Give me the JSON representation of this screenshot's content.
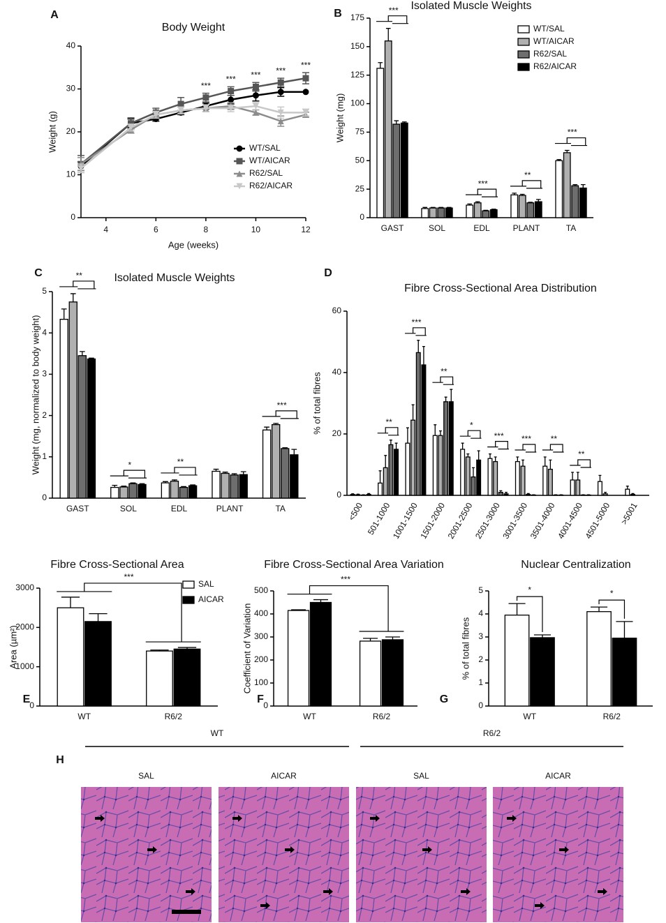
{
  "chart_data": [
    {
      "panel": "A",
      "type": "line",
      "title": "Body Weight",
      "x_label": "Age (weeks)",
      "y_label": "Weight (g)",
      "x": [
        3,
        5,
        6,
        7,
        8,
        9,
        10,
        11,
        12
      ],
      "xlim": [
        3,
        12
      ],
      "xticks": [
        4,
        6,
        8,
        10,
        12
      ],
      "ylim": [
        0,
        40
      ],
      "yticks": [
        0,
        10,
        20,
        30,
        40
      ],
      "significance": [
        null,
        null,
        null,
        null,
        "***",
        "***",
        "***",
        "***",
        "***"
      ],
      "series": [
        {
          "name": "WT/SAL",
          "color": "#000000",
          "marker": "circle",
          "values": [
            12,
            22,
            23,
            24.5,
            26,
            27.5,
            28.5,
            29.3,
            29.3
          ],
          "errors": [
            1,
            1,
            0.5,
            0.5,
            0.7,
            1,
            1.3,
            1,
            0
          ]
        },
        {
          "name": "WT/AICAR",
          "color": "#555555",
          "marker": "square",
          "values": [
            12.5,
            22,
            24.5,
            26.5,
            28,
            29.5,
            30.5,
            31.5,
            32.5
          ],
          "errors": [
            2,
            1.3,
            1,
            1.5,
            1,
            1,
            1,
            1,
            1.3
          ]
        },
        {
          "name": "R62/SAL",
          "color": "#8c8c8c",
          "marker": "triangle",
          "values": [
            12.5,
            20.5,
            24,
            25,
            25.5,
            26,
            24.5,
            22.5,
            24
          ],
          "errors": [
            1.5,
            0.8,
            0.8,
            0.8,
            0.8,
            0.8,
            0.6,
            1.2,
            0.6
          ]
        },
        {
          "name": "R62/AICAR",
          "color": "#c8c8c8",
          "marker": "triangle-down",
          "values": [
            11.5,
            21,
            24,
            25,
            25.5,
            25.5,
            26,
            24.5,
            24.5
          ],
          "errors": [
            1,
            0.8,
            0.8,
            0.8,
            0.8,
            0.8,
            0.8,
            1.3,
            0.8
          ]
        }
      ]
    },
    {
      "panel": "B",
      "type": "bar",
      "title": "Isolated Muscle Weights",
      "y_label": "Weight (mg)",
      "categories": [
        "GAST",
        "SOL",
        "EDL",
        "PLANT",
        "TA"
      ],
      "ylim": [
        0,
        175
      ],
      "yticks": [
        0,
        25,
        50,
        75,
        100,
        125,
        150,
        175
      ],
      "legend": true,
      "significance": [
        "***",
        null,
        "***",
        "**",
        "***"
      ],
      "series": [
        {
          "name": "WT/SAL",
          "color": "#ffffff",
          "values": [
            131,
            8,
            11,
            20,
            50
          ],
          "errors": [
            5,
            1,
            1,
            1.5,
            1
          ]
        },
        {
          "name": "WT/AICAR",
          "color": "#b0b0b0",
          "values": [
            155,
            8.5,
            13,
            19.5,
            57
          ],
          "errors": [
            11,
            0.5,
            1,
            1,
            2
          ]
        },
        {
          "name": "R62/SAL",
          "color": "#6e6e6e",
          "values": [
            82,
            8.5,
            6,
            13,
            28
          ],
          "errors": [
            3,
            0.5,
            0.5,
            0.5,
            1
          ]
        },
        {
          "name": "R62/AICAR",
          "color": "#000000",
          "values": [
            83,
            8.5,
            7,
            14,
            26
          ],
          "errors": [
            1,
            0.5,
            0.5,
            2,
            3
          ]
        }
      ]
    },
    {
      "panel": "C",
      "type": "bar",
      "title": "Isolated Muscle Weights",
      "y_label": "Weight (mg, normalized to body weight)",
      "categories": [
        "GAST",
        "SOL",
        "EDL",
        "PLANT",
        "TA"
      ],
      "ylim": [
        0,
        5
      ],
      "yticks": [
        0,
        1,
        2,
        3,
        4,
        5
      ],
      "legend": false,
      "significance": [
        "**",
        "*",
        "**",
        null,
        "***"
      ],
      "series": [
        {
          "name": "WT/SAL",
          "color": "#ffffff",
          "values": [
            4.33,
            0.26,
            0.37,
            0.65,
            1.65
          ],
          "errors": [
            0.25,
            0.05,
            0.03,
            0.05,
            0.07
          ]
        },
        {
          "name": "WT/AICAR",
          "color": "#b0b0b0",
          "values": [
            4.75,
            0.27,
            0.41,
            0.6,
            1.78
          ],
          "errors": [
            0.2,
            0.02,
            0.03,
            0.03,
            0.03
          ]
        },
        {
          "name": "R62/SAL",
          "color": "#6e6e6e",
          "values": [
            3.45,
            0.35,
            0.26,
            0.56,
            1.2
          ],
          "errors": [
            0.1,
            0.02,
            0.02,
            0.03,
            0.02
          ]
        },
        {
          "name": "R62/AICAR",
          "color": "#000000",
          "values": [
            3.37,
            0.33,
            0.3,
            0.57,
            1.05
          ],
          "errors": [
            0.02,
            0.02,
            0.02,
            0.07,
            0.13
          ]
        }
      ]
    },
    {
      "panel": "D",
      "type": "bar",
      "title": "Fibre Cross-Sectional Area Distribution",
      "y_label": "% of total fibres",
      "categories": [
        "<500",
        "501-1000",
        "1001-1500",
        "1501-2000",
        "2001-2500",
        "2501-3000",
        "3001-3500",
        "3501-4000",
        "4001-4500",
        "4501-5000",
        ">5001"
      ],
      "ylim": [
        0,
        60
      ],
      "yticks": [
        0,
        20,
        40,
        60
      ],
      "legend": false,
      "significance": [
        null,
        "**",
        "***",
        "**",
        "*",
        "***",
        "***",
        "**",
        "**",
        null,
        null
      ],
      "series": [
        {
          "name": "WT/SAL",
          "color": "#ffffff",
          "values": [
            0.3,
            4,
            17,
            19.5,
            15,
            12,
            11,
            9.5,
            5,
            4.5,
            2
          ],
          "errors": [
            0.2,
            4,
            5,
            3.5,
            2,
            1.5,
            1.5,
            3,
            2.5,
            2,
            1
          ]
        },
        {
          "name": "WT/AICAR",
          "color": "#b0b0b0",
          "values": [
            0.2,
            9,
            24.5,
            19.5,
            12.5,
            11,
            9.5,
            8.5,
            5,
            0.5,
            0.3
          ],
          "errors": [
            0.2,
            4,
            5,
            1.5,
            1,
            1.5,
            2,
            3,
            2.5,
            0.5,
            0.3
          ]
        },
        {
          "name": "R62/SAL",
          "color": "#6e6e6e",
          "values": [
            0.1,
            16.5,
            46.5,
            30.5,
            6,
            1,
            0.3,
            0.1,
            0.1,
            0,
            0
          ],
          "errors": [
            0.1,
            1.5,
            4,
            1.5,
            3,
            0.5,
            0.3,
            0.1,
            0.1,
            0,
            0
          ]
        },
        {
          "name": "R62/AICAR",
          "color": "#000000",
          "values": [
            0.3,
            15,
            42.5,
            30.5,
            11.5,
            0.5,
            0.1,
            0.1,
            0.1,
            0,
            0
          ],
          "errors": [
            0.3,
            2,
            6,
            4,
            3,
            0.5,
            0.1,
            0.1,
            0.1,
            0,
            0
          ]
        }
      ]
    },
    {
      "panel": "E",
      "type": "bar",
      "title": "Fibre Cross-Sectional Area",
      "y_label": "Area (µm²)",
      "categories": [
        "WT",
        "R6/2"
      ],
      "ylim": [
        0,
        3000
      ],
      "yticks": [
        0,
        1000,
        2000,
        3000
      ],
      "legend": true,
      "comparison": "***",
      "series": [
        {
          "name": "SAL",
          "color": "#ffffff",
          "values": [
            2500,
            1400
          ],
          "errors": [
            270,
            25
          ]
        },
        {
          "name": "AICAR",
          "color": "#000000",
          "values": [
            2150,
            1450
          ],
          "errors": [
            200,
            40
          ]
        }
      ]
    },
    {
      "panel": "F",
      "type": "bar",
      "title": "Fibre Cross-Sectional Area Variation",
      "y_label": "Coefficient of Variation",
      "categories": [
        "WT",
        "R6/2"
      ],
      "ylim": [
        0,
        500
      ],
      "yticks": [
        0,
        100,
        200,
        300,
        400,
        500
      ],
      "legend": false,
      "comparison": "***",
      "series": [
        {
          "name": "SAL",
          "color": "#ffffff",
          "values": [
            415,
            282
          ],
          "errors": [
            3,
            12
          ]
        },
        {
          "name": "AICAR",
          "color": "#000000",
          "values": [
            450,
            288
          ],
          "errors": [
            12,
            12
          ]
        }
      ]
    },
    {
      "panel": "G",
      "type": "bar",
      "title": "Nuclear Centralization",
      "y_label": "% of total fibres",
      "categories": [
        "WT",
        "R6/2"
      ],
      "ylim": [
        0,
        5
      ],
      "yticks": [
        0,
        1,
        2,
        3,
        4,
        5
      ],
      "legend": false,
      "significance": [
        "*",
        "*"
      ],
      "within_group": true,
      "series": [
        {
          "name": "SAL",
          "color": "#ffffff",
          "values": [
            3.95,
            4.1
          ],
          "errors": [
            0.5,
            0.2
          ]
        },
        {
          "name": "AICAR",
          "color": "#000000",
          "values": [
            2.97,
            2.95
          ],
          "errors": [
            0.12,
            0.72
          ]
        }
      ]
    }
  ],
  "figure_h": {
    "panel": "H",
    "groups": [
      {
        "label": "WT",
        "images": [
          "SAL",
          "AICAR"
        ]
      },
      {
        "label": "R6/2",
        "images": [
          "SAL",
          "AICAR"
        ]
      }
    ]
  }
}
